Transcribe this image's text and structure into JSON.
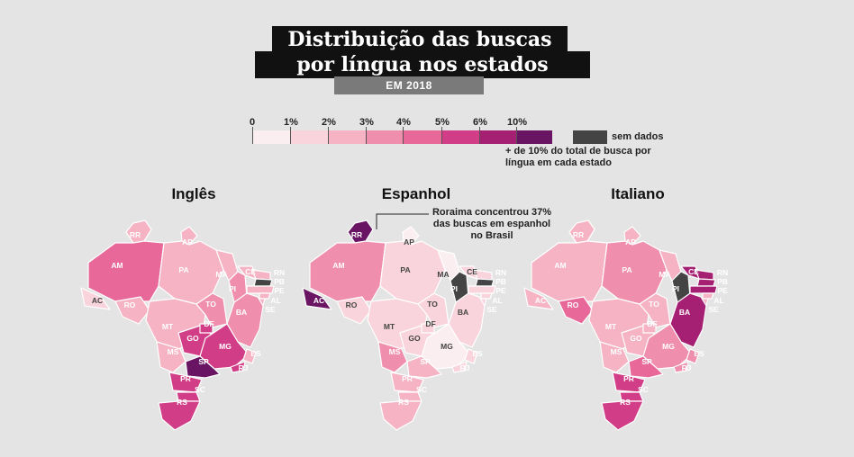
{
  "header": {
    "title_line1": "Distribuição das buscas",
    "title_line2": "por língua nos estados",
    "subtitle": "EM 2018"
  },
  "legend": {
    "ticks": [
      "0",
      "1%",
      "2%",
      "3%",
      "4%",
      "5%",
      "6%",
      "10%"
    ],
    "bins": [
      {
        "label": "0-1%",
        "color": "#fbeef0"
      },
      {
        "label": "1-2%",
        "color": "#f9d4dc"
      },
      {
        "label": "2-3%",
        "color": "#f5b3c4"
      },
      {
        "label": "3-4%",
        "color": "#ef8fad"
      },
      {
        "label": "4-5%",
        "color": "#e76899"
      },
      {
        "label": "5-6%",
        "color": "#d23d87"
      },
      {
        "label": "6-10%",
        "color": "#a51f73"
      },
      {
        "label": "+10%",
        "color": "#6a1464"
      }
    ],
    "nodata_label": "sem dados",
    "nodata_color": "#444444",
    "note": "+ de 10% do total de busca por língua em cada estado"
  },
  "annotation": "Roraima concentrou 37% das buscas em espanhol no Brasil",
  "maps": [
    {
      "title": "Inglês",
      "states": {
        "RR": 2,
        "AP": 2,
        "AM": 4,
        "PA": 2,
        "MA": 2,
        "PI": 3,
        "CE": 2,
        "RN": 2,
        "PB": -1,
        "PE": 2,
        "AL": 2,
        "SE": 2,
        "BA": 3,
        "AC": 1,
        "RO": 2,
        "TO": 3,
        "MT": 2,
        "GO": 5,
        "DF": 5,
        "MS": 2,
        "MG": 5,
        "ES": 2,
        "RJ": 5,
        "SP": 7,
        "PR": 5,
        "SC": 5,
        "RS": 5
      }
    },
    {
      "title": "Espanhol",
      "states": {
        "RR": 7,
        "AP": 0,
        "AM": 3,
        "PA": 1,
        "MA": 0,
        "PI": -1,
        "CE": 1,
        "RN": 1,
        "PB": -1,
        "PE": 1,
        "AL": 1,
        "SE": 1,
        "BA": 1,
        "AC": 7,
        "RO": 1,
        "TO": 1,
        "MT": 1,
        "GO": 1,
        "DF": 1,
        "MS": 3,
        "MG": 0,
        "ES": 1,
        "RJ": 1,
        "SP": 2,
        "PR": 2,
        "SC": 2,
        "RS": 2
      }
    },
    {
      "title": "Italiano",
      "states": {
        "RR": 2,
        "AP": 2,
        "AM": 2,
        "PA": 3,
        "MA": 2,
        "PI": -1,
        "CE": 6,
        "RN": 6,
        "PB": 6,
        "PE": 6,
        "AL": 2,
        "SE": 2,
        "BA": 6,
        "AC": 2,
        "RO": 4,
        "TO": 2,
        "MT": 2,
        "GO": 2,
        "DF": 2,
        "MS": 2,
        "MG": 3,
        "ES": 3,
        "RJ": 3,
        "SP": 4,
        "PR": 5,
        "SC": 5,
        "RS": 5
      }
    }
  ]
}
